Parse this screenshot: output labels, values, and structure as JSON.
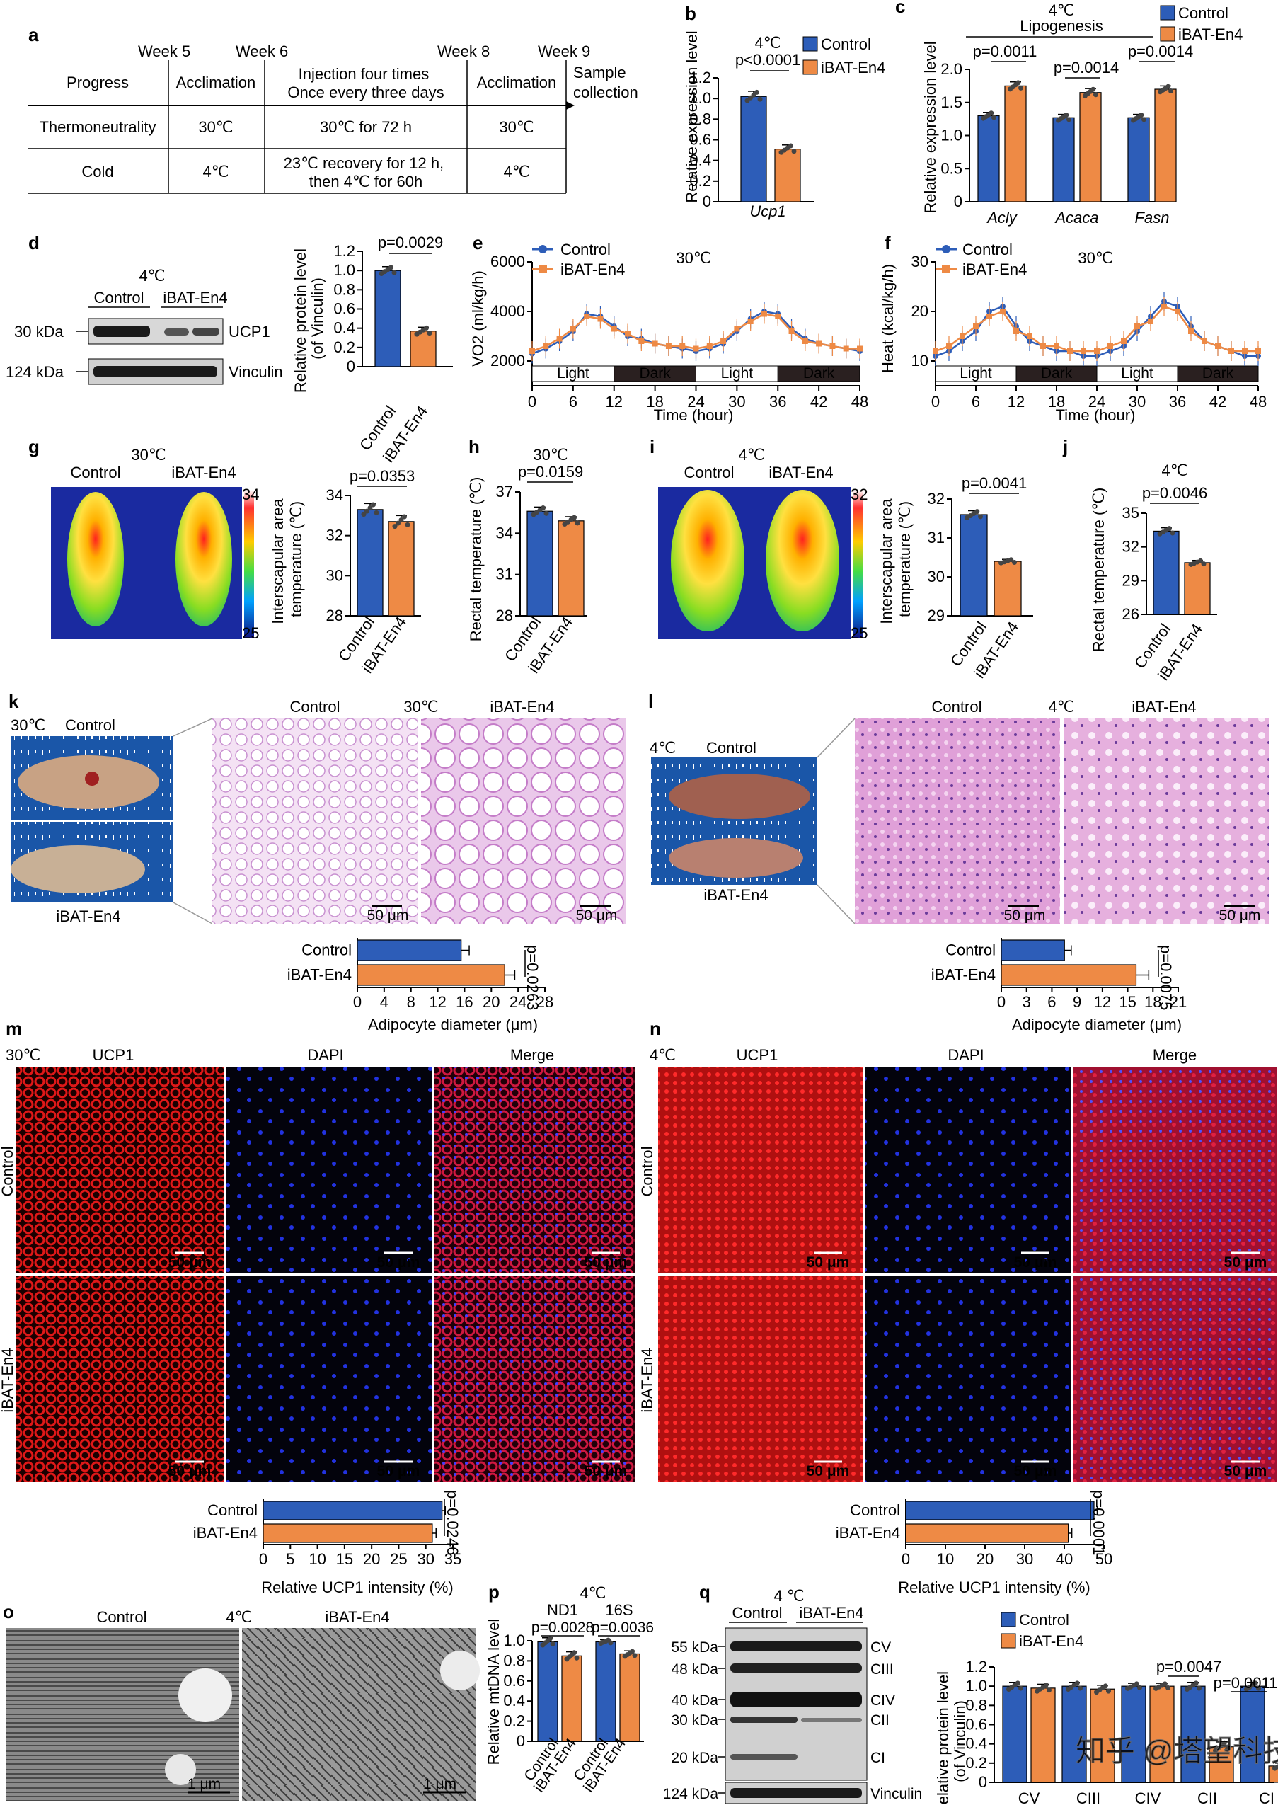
{
  "colors": {
    "control": "#2d5db8",
    "treat": "#ee8a45",
    "he": "#e6b4e6",
    "ucp1": "#c4141e",
    "dapi": "#1c28c8",
    "night": "#2a2020"
  },
  "legend": {
    "control": "Control",
    "treat": "iBAT-En4"
  },
  "panel_a": {
    "label": "a",
    "weeks": [
      "Week 5",
      "Week 6",
      "Week 8",
      "Week 9"
    ],
    "header": [
      "Progress",
      "Acclimation",
      "Injection four times\nOnce every three days",
      "Acclimation",
      "Sample\ncollection"
    ],
    "rows": [
      [
        "Thermoneutrality",
        "30℃",
        "30℃ for 72 h",
        "30℃"
      ],
      [
        "Cold",
        "4℃",
        "23℃ recovery for 12 h,\nthen 4℃ for 60h",
        "4℃"
      ]
    ]
  },
  "panel_b": {
    "label": "b",
    "temp": "4℃",
    "pval": "p<0.0001",
    "ylabel": "Relative expression level",
    "xlabel": "Ucp1",
    "yticks": [
      "0",
      "0.2",
      "0.4",
      "0.6",
      "0.8",
      "1.0",
      "1.2"
    ]
  },
  "panel_c": {
    "label": "c",
    "temp": "4℃",
    "subtitle": "Lipogenesis",
    "ylabel": "Relative expression level",
    "genes": [
      "Acly",
      "Acaca",
      "Fasn"
    ],
    "pvals": [
      "p=0.0011",
      "p=0.0014",
      "p=0.0014"
    ],
    "yticks": [
      "0",
      "0.5",
      "1.0",
      "1.5",
      "2.0"
    ]
  },
  "panel_d": {
    "label": "d",
    "temp": "4℃",
    "lanes": [
      "Control",
      "iBAT-En4"
    ],
    "markers": [
      "30 kDa",
      "124 kDa"
    ],
    "bands": [
      "UCP1",
      "Vinculin"
    ],
    "ylabel": "Relative protein level\n(of Vinculin)",
    "pval": "p=0.0029",
    "xlabels": [
      "Control",
      "iBAT-En4"
    ],
    "yticks": [
      "0",
      "0.2",
      "0.4",
      "0.6",
      "0.8",
      "1.0",
      "1.2"
    ]
  },
  "panel_e": {
    "label": "e",
    "temp": "30℃",
    "ylabel": "VO2 (ml/kg/h)",
    "xlabel": "Time (hour)",
    "yticks": [
      "2000",
      "4000",
      "6000"
    ],
    "xticks": [
      "0",
      "6",
      "12",
      "18",
      "24",
      "30",
      "36",
      "42",
      "48"
    ],
    "cycle": [
      "Light",
      "Dark",
      "Light",
      "Dark"
    ]
  },
  "panel_f": {
    "label": "f",
    "temp": "30℃",
    "ylabel": "Heat (kcal/kg/h)",
    "xlabel": "Time (hour)",
    "yticks": [
      "10",
      "20",
      "30"
    ],
    "xticks": [
      "0",
      "6",
      "12",
      "18",
      "24",
      "30",
      "36",
      "42",
      "48"
    ],
    "cycle": [
      "Light",
      "Dark",
      "Light",
      "Dark"
    ]
  },
  "panel_g": {
    "label": "g",
    "temp": "30℃",
    "labels": [
      "Control",
      "iBAT-En4"
    ],
    "scale": [
      "34",
      "25"
    ],
    "ylabel": "Interscapular area\ntemperature (℃)",
    "pval": "p=0.0353",
    "yticks": [
      "28",
      "30",
      "32",
      "34"
    ],
    "xlabels": [
      "Control",
      "iBAT-En4"
    ]
  },
  "panel_h": {
    "label": "h",
    "temp": "30℃",
    "ylabel": "Rectal temperature (℃)",
    "pval": "p=0.0159",
    "yticks": [
      "28",
      "31",
      "34",
      "37"
    ],
    "xlabels": [
      "Control",
      "iBAT-En4"
    ]
  },
  "panel_i": {
    "label": "i",
    "temp": "4℃",
    "labels": [
      "Control",
      "iBAT-En4"
    ],
    "scale": [
      "32",
      "25"
    ],
    "ylabel": "Interscapular area\ntemperature (℃)",
    "pval": "p=0.0041",
    "yticks": [
      "29",
      "30",
      "31",
      "32"
    ],
    "xlabels": [
      "Control",
      "iBAT-En4"
    ]
  },
  "panel_j": {
    "label": "j",
    "temp": "4℃",
    "ylabel": "Rectal temperature (℃)",
    "pval": "p=0.0046",
    "yticks": [
      "26",
      "29",
      "32",
      "35"
    ],
    "xlabels": [
      "Control",
      "iBAT-En4"
    ]
  },
  "panel_k": {
    "label": "k",
    "temp": "30℃",
    "photo": [
      "Control",
      "iBAT-En4"
    ],
    "he": [
      "Control",
      "30℃",
      "iBAT-En4"
    ],
    "scalebar": "50 μm",
    "bars": [
      "Control",
      "iBAT-En4"
    ],
    "pval": "p=0.0263",
    "xlabel": "Adipocyte diameter (μm)",
    "xticks": [
      "0",
      "4",
      "8",
      "12",
      "16",
      "20",
      "24",
      "28"
    ]
  },
  "panel_l": {
    "label": "l",
    "temp": "4℃",
    "photo": [
      "Control",
      "iBAT-En4"
    ],
    "he": [
      "Control",
      "4℃",
      "iBAT-En4"
    ],
    "scalebar": "50 μm",
    "bars": [
      "Control",
      "iBAT-En4"
    ],
    "pval": "p=0.0075",
    "xlabel": "Adipocyte diameter (μm)",
    "xticks": [
      "0",
      "3",
      "6",
      "9",
      "12",
      "15",
      "18",
      "21"
    ]
  },
  "panel_m": {
    "label": "m",
    "temp": "30℃",
    "cols": [
      "UCP1",
      "DAPI",
      "Merge"
    ],
    "rows": [
      "Control",
      "iBAT-En4"
    ],
    "scalebar": "50 μm",
    "bars": [
      "Control",
      "iBAT-En4"
    ],
    "pval": "p=0.0246",
    "xlabel": "Relative UCP1 intensity (%)",
    "xticks": [
      "0",
      "5",
      "10",
      "15",
      "20",
      "25",
      "30",
      "35"
    ]
  },
  "panel_n": {
    "label": "n",
    "temp": "4℃",
    "cols": [
      "UCP1",
      "DAPI",
      "Merge"
    ],
    "rows": [
      "Control",
      "iBAT-En4"
    ],
    "scalebar": "50 μm",
    "bars": [
      "Control",
      "iBAT-En4"
    ],
    "pval": "p=0.0001",
    "xlabel": "Relative UCP1 intensity (%)",
    "xticks": [
      "0",
      "10",
      "20",
      "30",
      "40",
      "50"
    ]
  },
  "panel_o": {
    "label": "o",
    "cols": [
      "Control",
      "4℃",
      "iBAT-En4"
    ],
    "scalebar": "1 μm"
  },
  "panel_p": {
    "label": "p",
    "temp": "4℃",
    "groups": [
      "ND1",
      "16S"
    ],
    "pvals": [
      "p=0.0028",
      "p=0.0036"
    ],
    "ylabel": "Relative mtDNA level",
    "yticks": [
      "0",
      "0.2",
      "0.4",
      "0.6",
      "0.8",
      "1.0"
    ],
    "xlabels": [
      "Control",
      "iBAT-En4",
      "Control",
      "iBAT-En4"
    ]
  },
  "panel_q": {
    "label": "q",
    "temp": "4 ℃",
    "lanes": [
      "Control",
      "iBAT-En4"
    ],
    "markers": [
      "55 kDa",
      "48 kDa",
      "40 kDa",
      "30 kDa",
      "20 kDa",
      "124 kDa"
    ],
    "bands": [
      "CV",
      "CIII",
      "CIV",
      "CII",
      "CI",
      "Vinculin"
    ],
    "ylabel": "Relative protein level\n(of Vinculin)",
    "pvals": [
      "p=0.0047",
      "p=0.0011"
    ],
    "complexes": [
      "CV",
      "CIII",
      "CIV",
      "CII",
      "CI"
    ],
    "yticks": [
      "0",
      "0.2",
      "0.4",
      "0.6",
      "0.8",
      "1.0",
      "1.2"
    ]
  },
  "watermark": "知乎 @塔望科技",
  "chart_data": [
    {
      "panel": "b",
      "type": "bar",
      "title": "4℃",
      "categories": [
        "Ucp1"
      ],
      "series": [
        {
          "name": "Control",
          "values": [
            1.02
          ],
          "errors": [
            0.05
          ]
        },
        {
          "name": "iBAT-En4",
          "values": [
            0.51
          ],
          "errors": [
            0.04
          ]
        }
      ],
      "ylabel": "Relative expression level",
      "ylim": [
        0,
        1.2
      ]
    },
    {
      "panel": "c",
      "type": "bar",
      "title": "Lipogenesis",
      "categories": [
        "Acly",
        "Acaca",
        "Fasn"
      ],
      "series": [
        {
          "name": "Control",
          "values": [
            1.3,
            1.27,
            1.27
          ],
          "errors": [
            0.05,
            0.05,
            0.05
          ]
        },
        {
          "name": "iBAT-En4",
          "values": [
            1.75,
            1.65,
            1.7
          ],
          "errors": [
            0.06,
            0.06,
            0.05
          ]
        }
      ],
      "ylabel": "Relative expression level",
      "ylim": [
        0,
        2.0
      ]
    },
    {
      "panel": "d",
      "type": "bar",
      "categories": [
        "Control",
        "iBAT-En4"
      ],
      "values": [
        1.0,
        0.37
      ],
      "errors": [
        0.04,
        0.04
      ],
      "ylabel": "Relative protein level (of Vinculin)",
      "ylim": [
        0,
        1.2
      ]
    },
    {
      "panel": "e",
      "type": "line",
      "title": "30℃",
      "xlabel": "Time (hour)",
      "ylabel": "VO2 (ml/kg/h)",
      "xlim": [
        0,
        48
      ],
      "ylim": [
        1000,
        6000
      ],
      "x": [
        0,
        2,
        4,
        6,
        8,
        10,
        12,
        14,
        16,
        18,
        20,
        22,
        24,
        26,
        28,
        30,
        32,
        34,
        36,
        38,
        40,
        42,
        44,
        46,
        48
      ],
      "series": [
        {
          "name": "Control",
          "values": [
            2300,
            2500,
            2800,
            3200,
            3900,
            3800,
            3400,
            3000,
            2900,
            2700,
            2600,
            2500,
            2400,
            2500,
            2700,
            3200,
            3700,
            4000,
            3900,
            3300,
            2900,
            2700,
            2600,
            2500,
            2400
          ]
        },
        {
          "name": "iBAT-En4",
          "values": [
            2400,
            2600,
            2900,
            3300,
            3800,
            3700,
            3300,
            3100,
            2800,
            2700,
            2600,
            2600,
            2500,
            2600,
            2800,
            3300,
            3600,
            3900,
            3800,
            3200,
            2800,
            2700,
            2600,
            2500,
            2500
          ]
        }
      ]
    },
    {
      "panel": "f",
      "type": "line",
      "title": "30℃",
      "xlabel": "Time (hour)",
      "ylabel": "Heat (kcal/kg/h)",
      "xlim": [
        0,
        48
      ],
      "ylim": [
        5,
        30
      ],
      "x": [
        0,
        2,
        4,
        6,
        8,
        10,
        12,
        14,
        16,
        18,
        20,
        22,
        24,
        26,
        28,
        30,
        32,
        34,
        36,
        38,
        40,
        42,
        44,
        46,
        48
      ],
      "series": [
        {
          "name": "Control",
          "values": [
            11,
            12,
            14,
            16,
            20,
            21,
            17,
            14,
            13,
            12,
            12,
            11,
            11,
            12,
            13,
            16,
            19,
            22,
            21,
            17,
            14,
            13,
            12,
            11,
            11
          ]
        },
        {
          "name": "iBAT-En4",
          "values": [
            12,
            13,
            15,
            17,
            19,
            20,
            16,
            15,
            13,
            13,
            12,
            12,
            12,
            13,
            14,
            17,
            18,
            21,
            20,
            16,
            14,
            13,
            12,
            12,
            12
          ]
        }
      ]
    },
    {
      "panel": "g",
      "type": "bar",
      "categories": [
        "Control",
        "iBAT-En4"
      ],
      "values": [
        33.3,
        32.7
      ],
      "errors": [
        0.3,
        0.3
      ],
      "ylabel": "Interscapular area temperature (℃)",
      "ylim": [
        28,
        34
      ]
    },
    {
      "panel": "h",
      "type": "bar",
      "categories": [
        "Control",
        "iBAT-En4"
      ],
      "values": [
        35.6,
        34.9
      ],
      "errors": [
        0.3,
        0.3
      ],
      "ylabel": "Rectal temperature (℃)",
      "ylim": [
        28,
        37
      ]
    },
    {
      "panel": "i",
      "type": "bar",
      "categories": [
        "Control",
        "iBAT-En4"
      ],
      "values": [
        31.6,
        30.4
      ],
      "errors": [
        0.1,
        0.05
      ],
      "ylabel": "Interscapular area temperature (℃)",
      "ylim": [
        29,
        32
      ]
    },
    {
      "panel": "j",
      "type": "bar",
      "categories": [
        "Control",
        "iBAT-En4"
      ],
      "values": [
        33.4,
        30.6
      ],
      "errors": [
        0.3,
        0.2
      ],
      "ylabel": "Rectal temperature (℃)",
      "ylim": [
        26,
        35
      ]
    },
    {
      "panel": "k",
      "type": "bar",
      "orientation": "horizontal",
      "categories": [
        "Control",
        "iBAT-En4"
      ],
      "values": [
        15.5,
        22.0
      ],
      "errors": [
        1.2,
        1.5
      ],
      "xlabel": "Adipocyte diameter (μm)",
      "xlim": [
        0,
        28
      ]
    },
    {
      "panel": "l",
      "type": "bar",
      "orientation": "horizontal",
      "categories": [
        "Control",
        "iBAT-En4"
      ],
      "values": [
        7.5,
        16.0
      ],
      "errors": [
        0.8,
        1.5
      ],
      "xlabel": "Adipocyte diameter (μm)",
      "xlim": [
        0,
        21
      ]
    },
    {
      "panel": "m",
      "type": "bar",
      "orientation": "horizontal",
      "categories": [
        "Control",
        "iBAT-En4"
      ],
      "values": [
        33.0,
        31.2
      ],
      "errors": [
        0.6,
        0.7
      ],
      "xlabel": "Relative UCP1 intensity (%)",
      "xlim": [
        0,
        35
      ]
    },
    {
      "panel": "n",
      "type": "bar",
      "orientation": "horizontal",
      "categories": [
        "Control",
        "iBAT-En4"
      ],
      "values": [
        47.5,
        41.0
      ],
      "errors": [
        0.8,
        0.9
      ],
      "xlabel": "Relative UCP1 intensity (%)",
      "xlim": [
        0,
        50
      ]
    },
    {
      "panel": "p",
      "type": "bar",
      "categories": [
        "ND1",
        "16S"
      ],
      "series": [
        {
          "name": "Control",
          "values": [
            0.99,
            0.99
          ],
          "errors": [
            0.04,
            0.02
          ]
        },
        {
          "name": "iBAT-En4",
          "values": [
            0.85,
            0.87
          ],
          "errors": [
            0.04,
            0.03
          ]
        }
      ],
      "ylabel": "Relative mtDNA level",
      "ylim": [
        0,
        1.0
      ]
    },
    {
      "panel": "q",
      "type": "bar",
      "categories": [
        "CV",
        "CIII",
        "CIV",
        "CII",
        "CI"
      ],
      "series": [
        {
          "name": "Control",
          "values": [
            1.0,
            1.0,
            1.0,
            1.0,
            1.0
          ],
          "errors": [
            0.04,
            0.04,
            0.03,
            0.04,
            0.04
          ]
        },
        {
          "name": "iBAT-En4",
          "values": [
            0.98,
            0.97,
            1.0,
            0.37,
            0.17
          ],
          "errors": [
            0.04,
            0.04,
            0.03,
            0.05,
            0.03
          ]
        }
      ],
      "ylabel": "Relative protein level (of Vinculin)",
      "ylim": [
        0,
        1.2
      ]
    }
  ]
}
